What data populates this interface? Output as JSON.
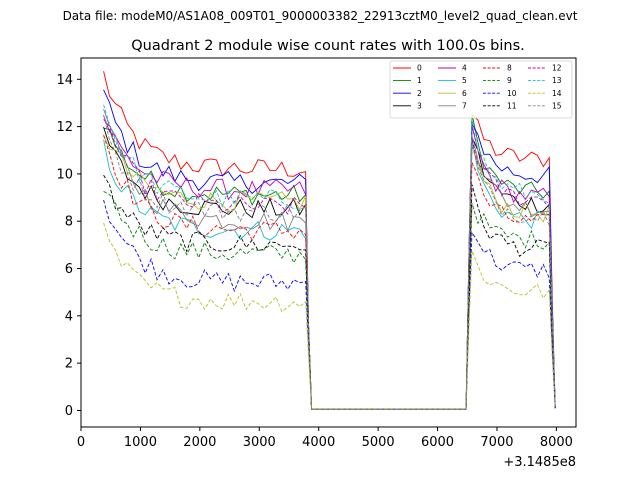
{
  "chart_data": {
    "type": "line",
    "suptitle": "Data file: modeM0/AS1A08_009T01_9000003382_22913cztM0_level2_quad_clean.evt",
    "title": "Quadrant 2 module wise count rates with 100.0s bins.",
    "xlabel": "",
    "ylabel": "",
    "x_offset_label": "+3.1485e8",
    "xlim": [
      0,
      8330
    ],
    "ylim": [
      -0.7,
      14.9
    ],
    "xticks": [
      0,
      1000,
      2000,
      3000,
      4000,
      5000,
      6000,
      7000,
      8000
    ],
    "yticks": [
      0,
      2,
      4,
      6,
      8,
      10,
      12,
      14
    ],
    "legend_position": "top-right",
    "segment1": {
      "start": 380,
      "end": 3780,
      "step": 100
    },
    "segment2": {
      "start": 6580,
      "end": 7880,
      "step": 100
    },
    "gap_points": [
      [
        3830,
        3.5
      ],
      [
        3880,
        0.05
      ],
      [
        6480,
        0.05
      ],
      [
        6530,
        6.5
      ],
      [
        7930,
        4.5
      ],
      [
        7980,
        0.1
      ]
    ],
    "series": [
      {
        "name": "0",
        "color": "#ff0000",
        "dash": "solid",
        "seg1_start": 14.2,
        "seg1_level": 10.2,
        "seg2_peak": 12.5,
        "seg2_level": 10.6
      },
      {
        "name": "1",
        "color": "#008000",
        "dash": "solid",
        "seg1_start": 12.3,
        "seg1_level": 9.1,
        "seg2_peak": 12.2,
        "seg2_level": 9.2
      },
      {
        "name": "2",
        "color": "#0000ff",
        "dash": "solid",
        "seg1_start": 13.4,
        "seg1_level": 9.6,
        "seg2_peak": 12.4,
        "seg2_level": 9.9
      },
      {
        "name": "3",
        "color": "#000000",
        "dash": "solid",
        "seg1_start": 11.8,
        "seg1_level": 8.5,
        "seg2_peak": 11.7,
        "seg2_level": 8.7
      },
      {
        "name": "4",
        "color": "#bf00bf",
        "dash": "solid",
        "seg1_start": 12.5,
        "seg1_level": 9.3,
        "seg2_peak": 11.8,
        "seg2_level": 9.0
      },
      {
        "name": "5",
        "color": "#17becf",
        "dash": "solid",
        "seg1_start": 11.1,
        "seg1_level": 7.6,
        "seg2_peak": 11.2,
        "seg2_level": 8.0
      },
      {
        "name": "6",
        "color": "#bcbd22",
        "dash": "solid",
        "seg1_start": 11.9,
        "seg1_level": 8.8,
        "seg2_peak": 11.3,
        "seg2_level": 8.3
      },
      {
        "name": "7",
        "color": "#808080",
        "dash": "solid",
        "seg1_start": 12.8,
        "seg1_level": 8.0,
        "seg2_peak": 12.0,
        "seg2_level": 8.5
      },
      {
        "name": "8",
        "color": "#ff0000",
        "dash": "dashed",
        "seg1_start": 11.7,
        "seg1_level": 7.6,
        "seg2_peak": 10.5,
        "seg2_level": 7.9
      },
      {
        "name": "9",
        "color": "#008000",
        "dash": "dashed",
        "seg1_start": 9.6,
        "seg1_level": 6.6,
        "seg2_peak": 8.8,
        "seg2_level": 7.2
      },
      {
        "name": "10",
        "color": "#0000ff",
        "dash": "dashed",
        "seg1_start": 9.0,
        "seg1_level": 5.4,
        "seg2_peak": 7.9,
        "seg2_level": 5.9
      },
      {
        "name": "11",
        "color": "#000000",
        "dash": "dashed",
        "seg1_start": 9.8,
        "seg1_level": 7.0,
        "seg2_peak": 9.2,
        "seg2_level": 6.8
      },
      {
        "name": "12",
        "color": "#bf00bf",
        "dash": "dashed",
        "seg1_start": 12.6,
        "seg1_level": 8.6,
        "seg2_peak": 11.5,
        "seg2_level": 8.9
      },
      {
        "name": "13",
        "color": "#17becf",
        "dash": "dashed",
        "seg1_start": 12.9,
        "seg1_level": 8.9,
        "seg2_peak": 12.1,
        "seg2_level": 9.1
      },
      {
        "name": "14",
        "color": "#bcbd22",
        "dash": "dashed",
        "seg1_start": 7.5,
        "seg1_level": 4.6,
        "seg2_peak": 6.6,
        "seg2_level": 5.0
      },
      {
        "name": "15",
        "color": "#808080",
        "dash": "dashed",
        "seg1_start": 12.1,
        "seg1_level": 8.4,
        "seg2_peak": 11.1,
        "seg2_level": 8.2
      }
    ]
  }
}
